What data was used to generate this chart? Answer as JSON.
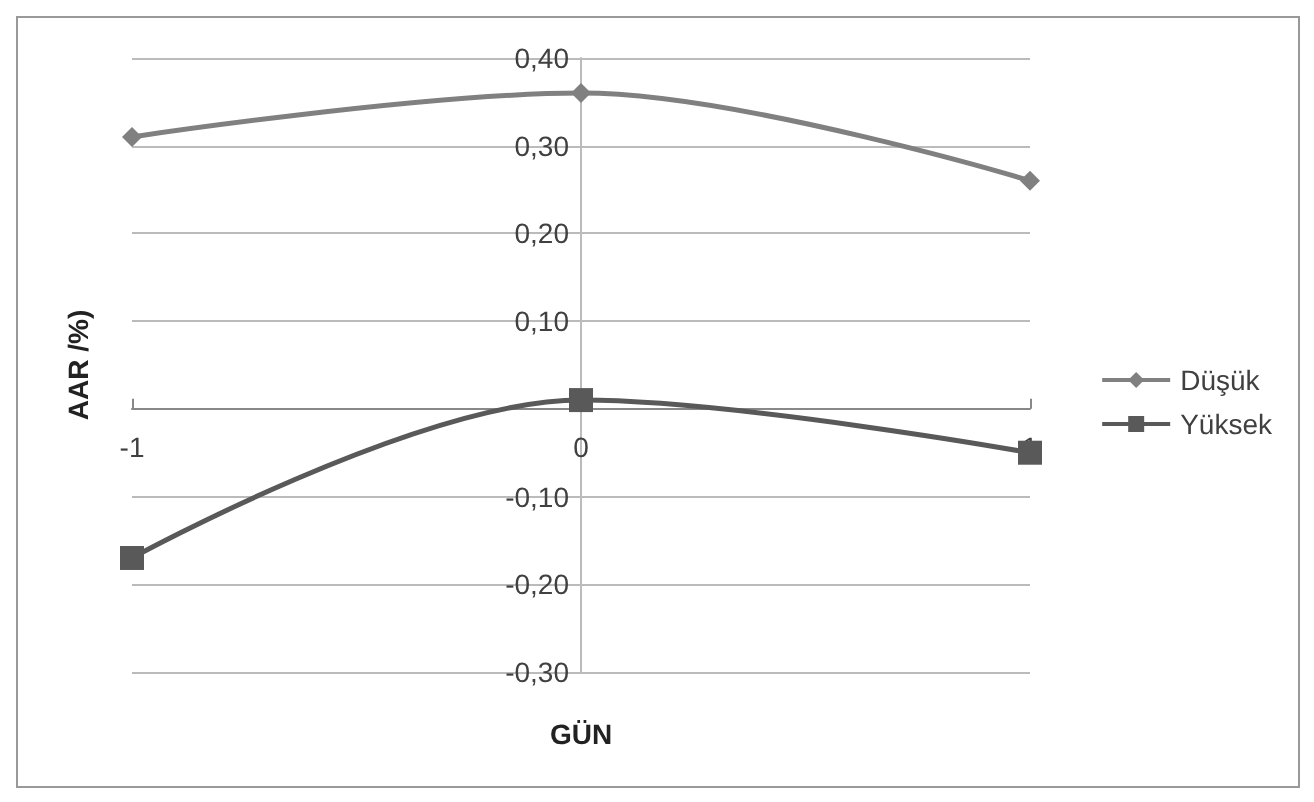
{
  "chart_data": {
    "type": "line",
    "xlabel": "GÜN",
    "ylabel": "AAR /%)",
    "x": [
      -1,
      0,
      1
    ],
    "xlim": [
      -1,
      1
    ],
    "xticks": [
      -1,
      0,
      1
    ],
    "ylim": [
      -0.3,
      0.4
    ],
    "yticks": [
      {
        "value": -0.3,
        "label": "-0,30"
      },
      {
        "value": -0.2,
        "label": "-0,20"
      },
      {
        "value": -0.1,
        "label": "-0,10"
      },
      {
        "value": 0,
        "label": null
      },
      {
        "value": 0.1,
        "label": "0,10"
      },
      {
        "value": 0.2,
        "label": "0,20"
      },
      {
        "value": 0.3,
        "label": "0,30"
      },
      {
        "value": 0.4,
        "label": "0,40"
      }
    ],
    "series": [
      {
        "name": "Düşük",
        "color": "#808080",
        "marker": "diamond",
        "values": [
          0.31,
          0.36,
          0.26
        ]
      },
      {
        "name": "Yüksek",
        "color": "#595959",
        "marker": "square",
        "values": [
          -0.17,
          0.01,
          -0.05
        ]
      }
    ],
    "grid": "y",
    "legend": "right"
  }
}
